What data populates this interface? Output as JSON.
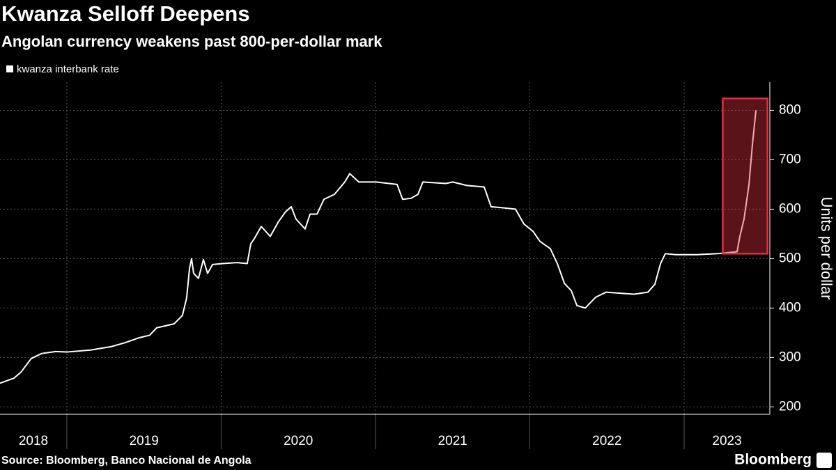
{
  "chart_data": {
    "type": "line",
    "title": "Kwanza Selloff Deepens",
    "subtitle": "Angolan currency weakens past 800-per-dollar mark",
    "y_axis_label": "Units per dollar",
    "source": "Source: Bloomberg, Banco Nacional de Angola",
    "brand": "Bloomberg",
    "year_labels": [
      "2018",
      "2019",
      "2020",
      "2021",
      "2022",
      "2023"
    ],
    "xlim": [
      2018.567,
      2023.555
    ],
    "xticks": [
      2019,
      2020,
      2021,
      2022,
      2023
    ],
    "ylim": [
      185,
      857
    ],
    "yticks": [
      200,
      300,
      400,
      500,
      600,
      700,
      800
    ],
    "grid": true,
    "legend": "top-left",
    "highlight": {
      "x": [
        2023.25,
        2023.54
      ],
      "y": [
        510,
        824
      ],
      "color": "#e0303f"
    },
    "series": [
      {
        "name": "kwanza interbank rate",
        "color": "#ffffff",
        "x": [
          2018.567,
          2018.657,
          2018.702,
          2018.77,
          2018.837,
          2018.928,
          2019.0,
          2019.153,
          2019.289,
          2019.379,
          2019.47,
          2019.537,
          2019.582,
          2019.695,
          2019.749,
          2019.776,
          2019.795,
          2019.808,
          2019.822,
          2019.853,
          2019.885,
          2019.912,
          2019.944,
          2020.011,
          2020.102,
          2020.169,
          2020.192,
          2020.214,
          2020.26,
          2020.318,
          2020.372,
          2020.418,
          2020.454,
          2020.485,
          2020.544,
          2020.576,
          2020.621,
          2020.666,
          2020.734,
          2020.801,
          2020.833,
          2020.892,
          2021.005,
          2021.14,
          2021.176,
          2021.23,
          2021.275,
          2021.307,
          2021.456,
          2021.501,
          2021.592,
          2021.704,
          2021.749,
          2021.817,
          2021.907,
          2021.962,
          2022.021,
          2022.065,
          2022.133,
          2022.178,
          2022.224,
          2022.269,
          2022.305,
          2022.359,
          2022.427,
          2022.494,
          2022.585,
          2022.675,
          2022.765,
          2022.81,
          2022.847,
          2022.878,
          2022.946,
          2023.081,
          2023.217,
          2023.284,
          2023.343,
          2023.361,
          2023.388,
          2023.42,
          2023.442,
          2023.465
        ],
        "values": [
          248,
          258,
          270,
          298,
          308,
          312,
          311,
          315,
          322,
          330,
          340,
          345,
          360,
          368,
          385,
          420,
          480,
          500,
          470,
          460,
          498,
          470,
          488,
          490,
          492,
          490,
          530,
          540,
          565,
          545,
          575,
          595,
          605,
          580,
          560,
          590,
          590,
          620,
          630,
          655,
          672,
          655,
          655,
          650,
          620,
          622,
          630,
          655,
          652,
          655,
          648,
          645,
          605,
          603,
          600,
          570,
          555,
          535,
          520,
          490,
          450,
          435,
          405,
          400,
          422,
          432,
          430,
          428,
          432,
          448,
          490,
          510,
          508,
          508,
          510,
          512,
          514,
          545,
          580,
          650,
          730,
          800
        ]
      }
    ]
  }
}
